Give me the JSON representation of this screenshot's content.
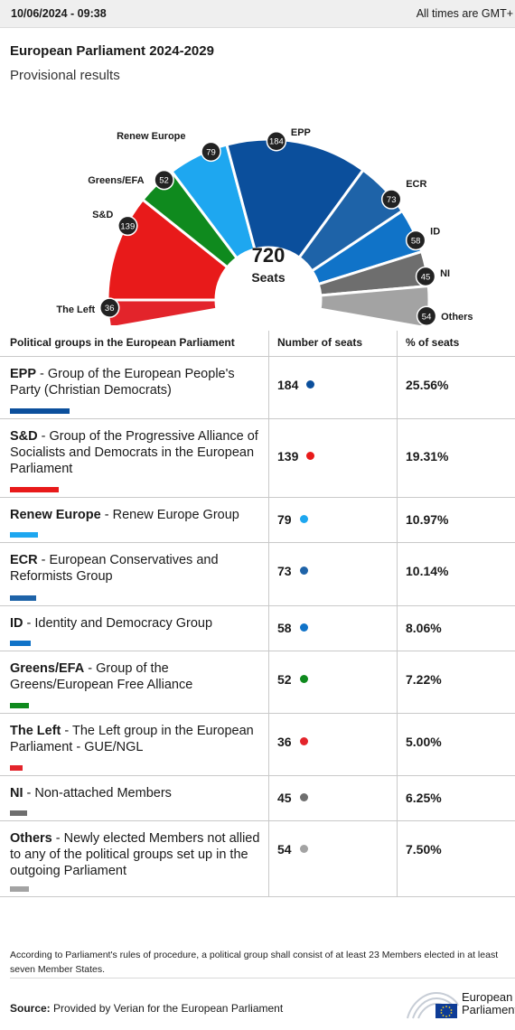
{
  "header": {
    "timestamp": "10/06/2024 - 09:38",
    "timezone_note": "All times are GMT+"
  },
  "title": "European Parliament 2024-2029",
  "subtitle": "Provisional results",
  "chart_center": {
    "total": "720",
    "label": "Seats"
  },
  "chart_data": {
    "type": "pie",
    "subtype": "parliament-hemicycle",
    "total_seats": 720,
    "order_left_to_right": [
      "Others",
      "NI",
      "ID",
      "ECR",
      "EPP",
      "Renew Europe",
      "Greens/EFA",
      "S&D",
      "The Left"
    ],
    "slices": [
      {
        "label": "The Left",
        "value": 36,
        "color": "#E3242B"
      },
      {
        "label": "S&D",
        "value": 139,
        "color": "#E81A1A"
      },
      {
        "label": "Greens/EFA",
        "value": 52,
        "color": "#0F8A1E"
      },
      {
        "label": "Renew Europe",
        "value": 79,
        "color": "#1EA7F0"
      },
      {
        "label": "EPP",
        "value": 184,
        "color": "#0B4F9C"
      },
      {
        "label": "ECR",
        "value": 73,
        "color": "#1E63A8"
      },
      {
        "label": "ID",
        "value": 58,
        "color": "#1073C8"
      },
      {
        "label": "NI",
        "value": 45,
        "color": "#6E6E6E"
      },
      {
        "label": "Others",
        "value": 54,
        "color": "#A3A3A3"
      }
    ]
  },
  "table": {
    "headers": [
      "Political groups in the European Parliament",
      "Number of seats",
      "% of seats"
    ],
    "rows": [
      {
        "abbr": "EPP",
        "desc": " - Group of the European People's Party (Christian Democrats)",
        "seats": "184",
        "pct": "25.56%",
        "color": "#0B4F9C"
      },
      {
        "abbr": "S&D",
        "desc": " - Group of the Progressive Alliance of Socialists and Democrats in the European Parliament",
        "seats": "139",
        "pct": "19.31%",
        "color": "#E81A1A"
      },
      {
        "abbr": "Renew Europe",
        "desc": " - Renew Europe Group",
        "seats": "79",
        "pct": "10.97%",
        "color": "#1EA7F0"
      },
      {
        "abbr": "ECR",
        "desc": " - European Conservatives and Reformists Group",
        "seats": "73",
        "pct": "10.14%",
        "color": "#1E63A8"
      },
      {
        "abbr": "ID",
        "desc": " - Identity and Democracy Group",
        "seats": "58",
        "pct": "8.06%",
        "color": "#1073C8"
      },
      {
        "abbr": "Greens/EFA",
        "desc": " - Group of the Greens/European Free Alliance",
        "seats": "52",
        "pct": "7.22%",
        "color": "#0F8A1E"
      },
      {
        "abbr": "The Left",
        "desc": " - The Left group in the European Parliament - GUE/NGL",
        "seats": "36",
        "pct": "5.00%",
        "color": "#E3242B"
      },
      {
        "abbr": "NI",
        "desc": " - Non-attached Members",
        "seats": "45",
        "pct": "6.25%",
        "color": "#6E6E6E"
      },
      {
        "abbr": "Others",
        "desc": " - Newly elected Members not allied to any of the political groups set up in the outgoing Parliament",
        "seats": "54",
        "pct": "7.50%",
        "color": "#A3A3A3"
      }
    ]
  },
  "footnote": "According to Parliament's rules of procedure, a political group shall consist of at least 23 Members elected in at least seven Member States.",
  "source": {
    "label": "Source:",
    "text": " Provided by Verian for the European Parliament"
  },
  "logo": {
    "line1": "European",
    "line2": "Parliament"
  }
}
